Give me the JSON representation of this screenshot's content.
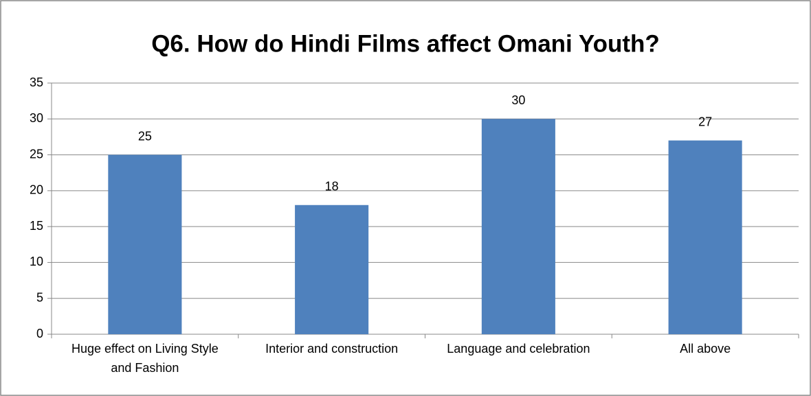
{
  "chart_data": {
    "type": "bar",
    "title": "Q6. How do Hindi Films affect Omani Youth?",
    "categories": [
      "Huge effect on Living Style and Fashion",
      "Interior and construction",
      "Language and celebration",
      "All above"
    ],
    "values": [
      25,
      18,
      30,
      27
    ],
    "color": "#4f81bd",
    "ylim": [
      0,
      35
    ],
    "yticks": [
      0,
      5,
      10,
      15,
      20,
      25,
      30,
      35
    ],
    "grid": true
  }
}
